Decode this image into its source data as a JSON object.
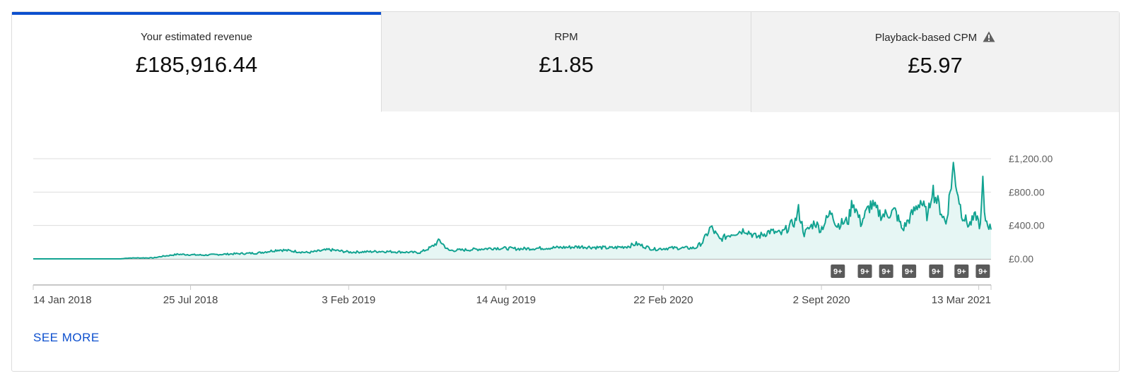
{
  "metrics": [
    {
      "label": "Your estimated revenue",
      "value": "£185,916.44",
      "selected": true
    },
    {
      "label": "RPM",
      "value": "£1.85",
      "selected": false
    },
    {
      "label": "Playback-based CPM",
      "value": "£5.97",
      "selected": false,
      "icon": "warning-icon"
    }
  ],
  "chart_data": {
    "type": "area",
    "series_name": "Your estimated revenue",
    "x_range": [
      "2018-01-14",
      "2021-03-28"
    ],
    "x_tick_labels": [
      "14 Jan 2018",
      "25 Jul 2018",
      "3 Feb 2019",
      "14 Aug 2019",
      "22 Feb 2020",
      "2 Sept 2020",
      "13 Mar 2021"
    ],
    "x_tick_dates": [
      "2018-01-14",
      "2018-07-25",
      "2019-02-03",
      "2019-08-14",
      "2020-02-22",
      "2020-09-02",
      "2021-03-13"
    ],
    "y_tick_labels": [
      "£0.00",
      "£400.00",
      "£800.00",
      "£1,200.00"
    ],
    "y_range": [
      0,
      1200
    ],
    "grid": true,
    "y_axis_position": "right",
    "line_color": "#12a391",
    "fill_color": "#e6f6f4",
    "points": [
      [
        "2018-01-14",
        0
      ],
      [
        "2018-05-01",
        0
      ],
      [
        "2018-05-10",
        10
      ],
      [
        "2018-06-10",
        12
      ],
      [
        "2018-06-20",
        30
      ],
      [
        "2018-07-10",
        55
      ],
      [
        "2018-08-10",
        45
      ],
      [
        "2018-09-15",
        60
      ],
      [
        "2018-10-15",
        70
      ],
      [
        "2018-11-10",
        110
      ],
      [
        "2018-12-15",
        75
      ],
      [
        "2019-01-10",
        110
      ],
      [
        "2019-02-05",
        80
      ],
      [
        "2019-03-15",
        90
      ],
      [
        "2019-05-01",
        75
      ],
      [
        "2019-05-15",
        140
      ],
      [
        "2019-05-25",
        220
      ],
      [
        "2019-06-05",
        100
      ],
      [
        "2019-07-01",
        110
      ],
      [
        "2019-08-01",
        130
      ],
      [
        "2019-09-01",
        120
      ],
      [
        "2019-10-15",
        135
      ],
      [
        "2019-11-15",
        145
      ],
      [
        "2019-12-20",
        130
      ],
      [
        "2020-01-10",
        150
      ],
      [
        "2020-01-20",
        180
      ],
      [
        "2020-02-10",
        115
      ],
      [
        "2020-03-01",
        130
      ],
      [
        "2020-04-01",
        130
      ],
      [
        "2020-04-10",
        200
      ],
      [
        "2020-04-20",
        380
      ],
      [
        "2020-05-01",
        230
      ],
      [
        "2020-05-15",
        300
      ],
      [
        "2020-06-01",
        350
      ],
      [
        "2020-06-15",
        260
      ],
      [
        "2020-07-01",
        330
      ],
      [
        "2020-07-15",
        300
      ],
      [
        "2020-08-01",
        450
      ],
      [
        "2020-08-05",
        580
      ],
      [
        "2020-08-12",
        300
      ],
      [
        "2020-08-25",
        440
      ],
      [
        "2020-09-01",
        350
      ],
      [
        "2020-09-15",
        580
      ],
      [
        "2020-09-20",
        400
      ],
      [
        "2020-10-05",
        460
      ],
      [
        "2020-10-10",
        700
      ],
      [
        "2020-10-20",
        430
      ],
      [
        "2020-11-01",
        650
      ],
      [
        "2020-11-15",
        520
      ],
      [
        "2020-12-01",
        570
      ],
      [
        "2020-12-10",
        350
      ],
      [
        "2021-01-01",
        700
      ],
      [
        "2021-01-10",
        500
      ],
      [
        "2021-01-15",
        850
      ],
      [
        "2021-02-01",
        420
      ],
      [
        "2021-02-10",
        1100
      ],
      [
        "2021-02-20",
        550
      ],
      [
        "2021-03-01",
        400
      ],
      [
        "2021-03-10",
        520
      ],
      [
        "2021-03-15",
        380
      ],
      [
        "2021-03-18",
        930
      ],
      [
        "2021-03-20",
        500
      ],
      [
        "2021-03-28",
        350
      ]
    ],
    "annotations": [
      {
        "label": "9+",
        "date": "2020-09-22"
      },
      {
        "label": "9+",
        "date": "2020-10-25"
      },
      {
        "label": "9+",
        "date": "2020-11-20"
      },
      {
        "label": "9+",
        "date": "2020-12-18"
      },
      {
        "label": "9+",
        "date": "2021-01-20"
      },
      {
        "label": "9+",
        "date": "2021-02-20"
      },
      {
        "label": "9+",
        "date": "2021-03-18"
      }
    ]
  },
  "footer": {
    "see_more": "SEE MORE"
  }
}
